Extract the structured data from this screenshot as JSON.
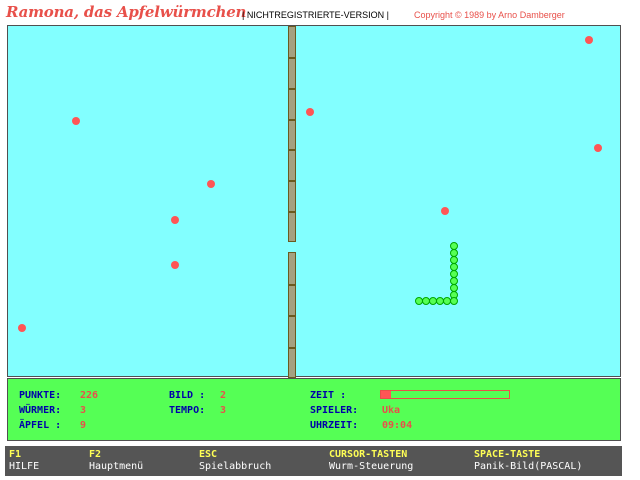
{
  "header": {
    "title": "Ramona, das Apfelwürmchen",
    "mid": "| NICHTREGISTRIERTE-VERSION |",
    "copyright": "Copyright ©  1989 by Arno Damberger"
  },
  "status": {
    "punkte_label": "PUNKTE:",
    "punkte_value": "226",
    "wuermer_label": "WÜRMER:",
    "wuermer_value": "3",
    "aepfel_label": "ÄPFEL :",
    "aepfel_value": "9",
    "bild_label": "BILD :",
    "bild_value": "2",
    "tempo_label": "TEMPO:",
    "tempo_value": "3",
    "zeit_label": "ZEIT    :",
    "zeit_fraction": 0.08,
    "spieler_label": "SPIELER:",
    "spieler_value": "Uka",
    "uhrzeit_label": "UHRZEIT:",
    "uhrzeit_value": "09:04"
  },
  "help": [
    {
      "key": "F1",
      "desc": "HILFE"
    },
    {
      "key": "F2",
      "desc": "Hauptmenü"
    },
    {
      "key": "ESC",
      "desc": "Spielabbruch"
    },
    {
      "key": "CURSOR-TASTEN",
      "desc": "Wurm-Steuerung"
    },
    {
      "key": "SPACE-TASTE",
      "desc": "Panik-Bild(PASCAL)"
    }
  ],
  "colors": {
    "field": "#82ffff",
    "apple": "#ff5555",
    "worm": "#55ff55",
    "status_bg": "#55ff55",
    "help_bg": "#555555"
  }
}
